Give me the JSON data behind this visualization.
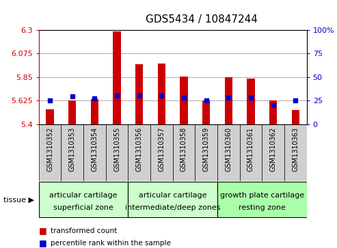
{
  "title": "GDS5434 / 10847244",
  "samples": [
    "GSM1310352",
    "GSM1310353",
    "GSM1310354",
    "GSM1310355",
    "GSM1310356",
    "GSM1310357",
    "GSM1310358",
    "GSM1310359",
    "GSM1310360",
    "GSM1310361",
    "GSM1310362",
    "GSM1310363"
  ],
  "bar_values": [
    5.54,
    5.625,
    5.635,
    6.285,
    5.97,
    5.975,
    5.855,
    5.622,
    5.845,
    5.835,
    5.622,
    5.535
  ],
  "percentile_values": [
    25,
    29,
    27,
    30,
    30,
    30,
    28,
    25,
    28,
    28,
    20,
    25
  ],
  "ymin": 5.4,
  "ymax": 6.3,
  "yticks": [
    5.4,
    5.625,
    5.85,
    6.075,
    6.3
  ],
  "ytick_labels": [
    "5.4",
    "5.625",
    "5.85",
    "6.075",
    "6.3"
  ],
  "right_yticks": [
    0,
    25,
    50,
    75,
    100
  ],
  "right_ytick_labels": [
    "0",
    "25",
    "50",
    "75",
    "100%"
  ],
  "bar_color": "#cc0000",
  "percentile_color": "#0000cc",
  "grid_color": "#000000",
  "tissue_groups": [
    {
      "label_line1": "articular cartilage",
      "label_line2": "superficial zone",
      "start": 0,
      "end": 4,
      "color": "#ccffcc"
    },
    {
      "label_line1": "articular cartilage",
      "label_line2": "intermediate/deep zones",
      "start": 4,
      "end": 8,
      "color": "#ccffcc"
    },
    {
      "label_line1": "growth plate cartilage",
      "label_line2": "resting zone",
      "start": 8,
      "end": 12,
      "color": "#aaffaa"
    }
  ],
  "tissue_label": "tissue ▶",
  "legend_transformed": "transformed count",
  "legend_percentile": "percentile rank within the sample",
  "bar_width": 0.35,
  "sample_fontsize": 7,
  "title_fontsize": 11,
  "ytick_fontsize": 8,
  "ylabel_color_left": "#cc0000",
  "ylabel_color_right": "#0000cc",
  "plot_bg": "#ffffff",
  "sample_cell_bg": "#d0d0d0",
  "figure_bg": "#ffffff"
}
